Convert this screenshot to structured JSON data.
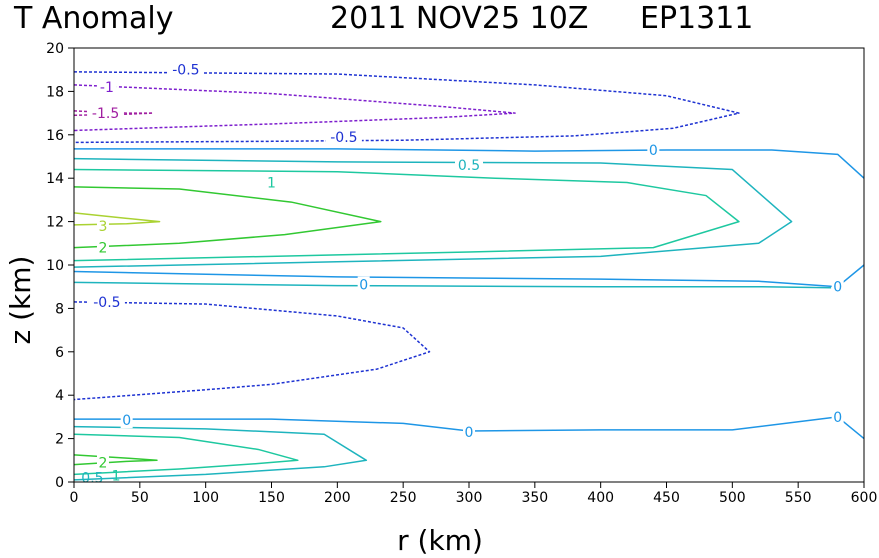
{
  "header": {
    "title": "T Anomaly",
    "timestamp": "2011 NOV25 10Z",
    "storm_id": "EP1311"
  },
  "chart_data": {
    "type": "contour",
    "title": "T Anomaly",
    "xlabel": "r (km)",
    "ylabel": "z (km)",
    "xlim": [
      0,
      600
    ],
    "ylim": [
      0,
      20
    ],
    "xticks": [
      0,
      50,
      100,
      150,
      200,
      250,
      300,
      350,
      400,
      450,
      500,
      550,
      600
    ],
    "yticks": [
      0,
      2,
      4,
      6,
      8,
      10,
      12,
      14,
      16,
      18,
      20
    ],
    "grid": false,
    "contours": [
      {
        "level": "-0.5",
        "color": "#1e32d2",
        "dashed": true,
        "closed": false,
        "points": [
          [
            0,
            18.9
          ],
          [
            200,
            18.8
          ],
          [
            350,
            18.3
          ],
          [
            450,
            17.8
          ],
          [
            505,
            17.0
          ],
          [
            455,
            16.3
          ],
          [
            380,
            15.95
          ],
          [
            250,
            15.75
          ],
          [
            150,
            15.7
          ],
          [
            0,
            15.65
          ]
        ],
        "labels": [
          {
            "text": "-0.5",
            "x": 85,
            "y": 19.0
          },
          {
            "text": "-0.5",
            "x": 205,
            "y": 15.9
          }
        ]
      },
      {
        "level": "-1",
        "color": "#7d1ecd",
        "dashed": true,
        "closed": false,
        "points": [
          [
            0,
            18.3
          ],
          [
            150,
            17.9
          ],
          [
            280,
            17.3
          ],
          [
            335,
            17.0
          ],
          [
            280,
            16.8
          ],
          [
            150,
            16.5
          ],
          [
            0,
            16.2
          ]
        ],
        "labels": [
          {
            "text": "-1",
            "x": 25,
            "y": 18.2
          }
        ]
      },
      {
        "level": "-1.5",
        "color": "#a01ea0",
        "dashed": true,
        "closed": false,
        "points": [
          [
            0,
            17.1
          ],
          [
            40,
            17.0
          ],
          [
            60,
            17.0
          ],
          [
            40,
            16.95
          ],
          [
            0,
            16.9
          ]
        ],
        "labels": [
          {
            "text": "-1.5",
            "x": 24,
            "y": 17.0
          }
        ]
      },
      {
        "level": "0",
        "color": "#1e96e6",
        "dashed": false,
        "closed": false,
        "points": [
          [
            0,
            15.35
          ],
          [
            200,
            15.35
          ],
          [
            350,
            15.25
          ],
          [
            450,
            15.3
          ],
          [
            530,
            15.3
          ],
          [
            580,
            15.1
          ],
          [
            600,
            14.0
          ]
        ],
        "labels": [
          {
            "text": "0",
            "x": 440,
            "y": 15.3
          }
        ]
      },
      {
        "level": "0.5",
        "color": "#1eb4be",
        "dashed": false,
        "closed": false,
        "points": [
          [
            0,
            14.9
          ],
          [
            200,
            14.75
          ],
          [
            400,
            14.7
          ],
          [
            500,
            14.4
          ],
          [
            545,
            12.0
          ],
          [
            520,
            11.0
          ],
          [
            400,
            10.4
          ],
          [
            200,
            10.15
          ],
          [
            0,
            9.9
          ]
        ],
        "labels": [
          {
            "text": "0.5",
            "x": 300,
            "y": 14.6
          }
        ]
      },
      {
        "level": "1",
        "color": "#1ec8a0",
        "dashed": false,
        "closed": false,
        "points": [
          [
            0,
            14.4
          ],
          [
            200,
            14.3
          ],
          [
            320,
            14.0
          ],
          [
            420,
            13.8
          ],
          [
            480,
            13.2
          ],
          [
            505,
            12.0
          ],
          [
            440,
            10.8
          ],
          [
            300,
            10.6
          ],
          [
            150,
            10.4
          ],
          [
            0,
            10.2
          ]
        ],
        "labels": [
          {
            "text": "1",
            "x": 150,
            "y": 13.8
          }
        ]
      },
      {
        "level": "2",
        "color": "#32c832",
        "dashed": false,
        "closed": false,
        "points": [
          [
            0,
            13.6
          ],
          [
            80,
            13.5
          ],
          [
            165,
            12.9
          ],
          [
            233,
            12.0
          ],
          [
            160,
            11.4
          ],
          [
            80,
            11.0
          ],
          [
            0,
            10.8
          ]
        ],
        "labels": [
          {
            "text": "2",
            "x": 22,
            "y": 10.8
          }
        ]
      },
      {
        "level": "3",
        "color": "#aad232",
        "dashed": false,
        "closed": false,
        "points": [
          [
            0,
            12.4
          ],
          [
            40,
            12.15
          ],
          [
            65,
            12.0
          ],
          [
            40,
            11.9
          ],
          [
            0,
            11.85
          ]
        ],
        "labels": [
          {
            "text": "3",
            "x": 22,
            "y": 11.8
          }
        ]
      },
      {
        "level": "0",
        "color": "#1e96e6",
        "dashed": false,
        "closed": false,
        "points": [
          [
            0,
            9.7
          ],
          [
            200,
            9.45
          ],
          [
            400,
            9.35
          ],
          [
            520,
            9.25
          ],
          [
            580,
            9.0
          ],
          [
            600,
            10.0
          ]
        ],
        "labels": [
          {
            "text": "0",
            "x": 220,
            "y": 9.1
          },
          {
            "text": "0",
            "x": 580,
            "y": 9.0
          }
        ]
      },
      {
        "level": "0.5",
        "color": "#1eb4be",
        "dashed": false,
        "closed": false,
        "points": [
          [
            0,
            9.2
          ],
          [
            200,
            9.05
          ],
          [
            400,
            9.0
          ],
          [
            520,
            9.0
          ],
          [
            575,
            8.95
          ]
        ],
        "labels": []
      },
      {
        "level": "-0.5",
        "color": "#1e32d2",
        "dashed": true,
        "closed": false,
        "points": [
          [
            0,
            8.3
          ],
          [
            100,
            8.2
          ],
          [
            200,
            7.65
          ],
          [
            250,
            7.1
          ],
          [
            270,
            6.0
          ],
          [
            230,
            5.2
          ],
          [
            150,
            4.5
          ],
          [
            100,
            4.25
          ],
          [
            0,
            3.8
          ]
        ],
        "labels": [
          {
            "text": "-0.5",
            "x": 25,
            "y": 8.3
          }
        ]
      },
      {
        "level": "0",
        "color": "#1e96e6",
        "dashed": false,
        "closed": false,
        "points": [
          [
            0,
            2.9
          ],
          [
            150,
            2.9
          ],
          [
            250,
            2.7
          ],
          [
            300,
            2.35
          ],
          [
            400,
            2.4
          ],
          [
            500,
            2.4
          ],
          [
            580,
            3.0
          ],
          [
            600,
            2.0
          ]
        ],
        "labels": [
          {
            "text": "0",
            "x": 40,
            "y": 2.85
          },
          {
            "text": "0",
            "x": 300,
            "y": 2.3
          },
          {
            "text": "0",
            "x": 580,
            "y": 3.0
          }
        ]
      },
      {
        "level": "0.5",
        "color": "#1eb4be",
        "dashed": false,
        "closed": false,
        "points": [
          [
            0,
            2.55
          ],
          [
            100,
            2.45
          ],
          [
            190,
            2.2
          ],
          [
            222,
            1.0
          ],
          [
            190,
            0.7
          ],
          [
            100,
            0.35
          ],
          [
            0,
            0.1
          ]
        ],
        "labels": []
      },
      {
        "level": "1",
        "color": "#1ec8a0",
        "dashed": false,
        "closed": false,
        "points": [
          [
            0,
            2.2
          ],
          [
            80,
            2.05
          ],
          [
            140,
            1.5
          ],
          [
            170,
            1.0
          ],
          [
            140,
            0.85
          ],
          [
            80,
            0.6
          ],
          [
            0,
            0.35
          ]
        ],
        "labels": []
      },
      {
        "level": "2",
        "color": "#32c832",
        "dashed": false,
        "closed": false,
        "points": [
          [
            0,
            1.25
          ],
          [
            40,
            1.1
          ],
          [
            63,
            1.0
          ],
          [
            40,
            0.95
          ],
          [
            0,
            0.8
          ]
        ],
        "labels": [
          {
            "text": "2",
            "x": 22,
            "y": 0.9
          }
        ]
      }
    ],
    "extra_labels": [
      {
        "text": "0.5",
        "x": 14,
        "y": 0.2,
        "color": "#1eb4be"
      },
      {
        "text": "1",
        "x": 32,
        "y": 0.3,
        "color": "#1ec8a0"
      }
    ]
  }
}
